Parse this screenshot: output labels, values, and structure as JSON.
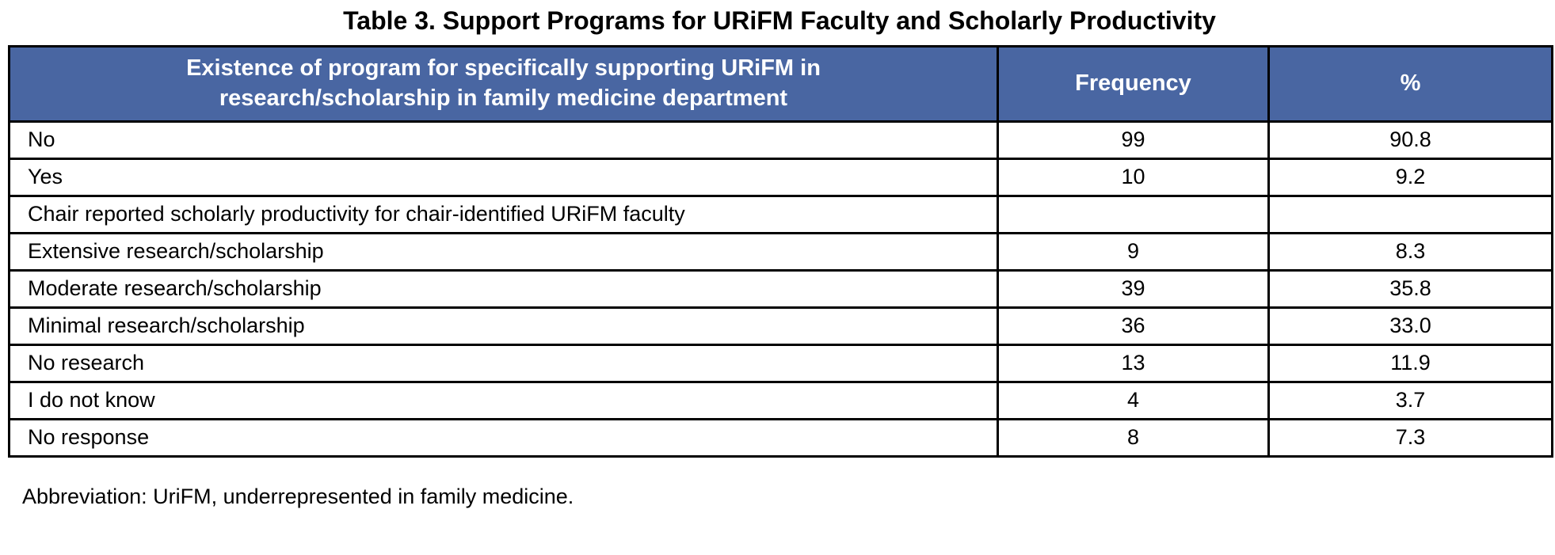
{
  "title": "Table 3. Support Programs for URiFM Faculty and Scholarly Productivity",
  "table": {
    "header": {
      "program_line1": "Existence of program for specifically supporting URiFM in",
      "program_line2": "research/scholarship in family medicine department",
      "frequency": "Frequency",
      "percent": "%"
    },
    "rows": [
      {
        "label": "No",
        "frequency": "99",
        "percent": "90.8"
      },
      {
        "label": "Yes",
        "frequency": "10",
        "percent": "9.2"
      },
      {
        "label": "Chair reported scholarly productivity for chair-identified URiFM faculty",
        "frequency": "",
        "percent": ""
      },
      {
        "label": "Extensive research/scholarship",
        "frequency": "9",
        "percent": "8.3"
      },
      {
        "label": "Moderate research/scholarship",
        "frequency": "39",
        "percent": "35.8"
      },
      {
        "label": "Minimal research/scholarship",
        "frequency": "36",
        "percent": "33.0"
      },
      {
        "label": "No research",
        "frequency": "13",
        "percent": "11.9"
      },
      {
        "label": "I do not know",
        "frequency": "4",
        "percent": "3.7"
      },
      {
        "label": "No response",
        "frequency": "8",
        "percent": "7.3"
      }
    ]
  },
  "footnote": "Abbreviation: UriFM, underrepresented in family medicine.",
  "colors": {
    "header_bg": "#4966A2",
    "header_text": "#FFFFFF",
    "border": "#000000",
    "page_bg": "#FFFFFF"
  }
}
